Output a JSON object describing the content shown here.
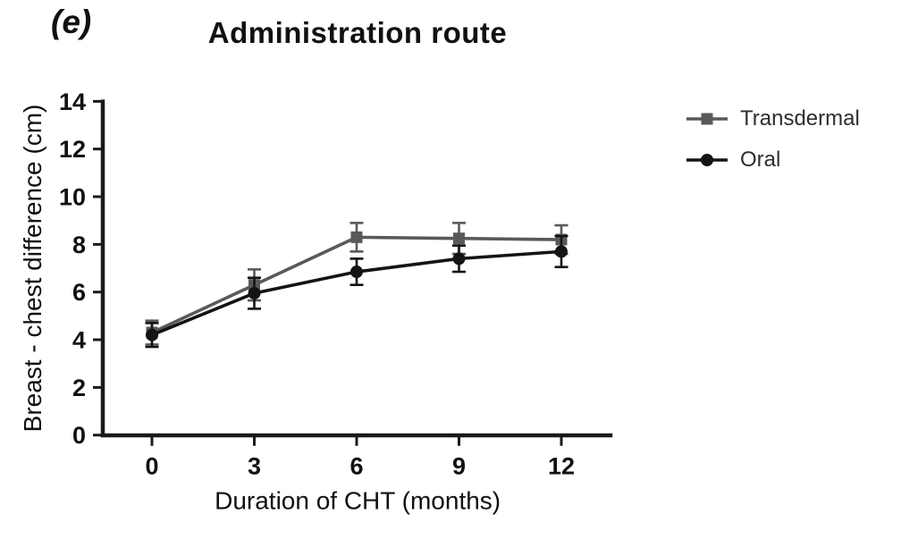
{
  "chart_data": {
    "type": "line",
    "panel_label": "(e)",
    "title": "Administration route",
    "xlabel": "Duration of CHT (months)",
    "ylabel": "Breast - chest difference (cm)",
    "x": [
      0,
      3,
      6,
      9,
      12
    ],
    "xticks": [
      0,
      3,
      6,
      9,
      12
    ],
    "yticks": [
      0,
      2,
      4,
      6,
      8,
      10,
      12,
      14
    ],
    "xlim": [
      -1.5,
      13.5
    ],
    "ylim": [
      0,
      14
    ],
    "grid": false,
    "error_bars": true,
    "legend_position": "right",
    "axis_color": "#1a1a1a",
    "series": [
      {
        "name": "Transdermal",
        "marker": "square",
        "color": "#595959",
        "values": [
          4.3,
          6.3,
          8.3,
          8.25,
          8.2
        ],
        "errors": [
          0.5,
          0.65,
          0.6,
          0.65,
          0.6
        ]
      },
      {
        "name": "Oral",
        "marker": "circle",
        "color": "#141414",
        "values": [
          4.2,
          5.95,
          6.85,
          7.4,
          7.7
        ],
        "errors": [
          0.5,
          0.65,
          0.55,
          0.55,
          0.65
        ]
      }
    ]
  }
}
